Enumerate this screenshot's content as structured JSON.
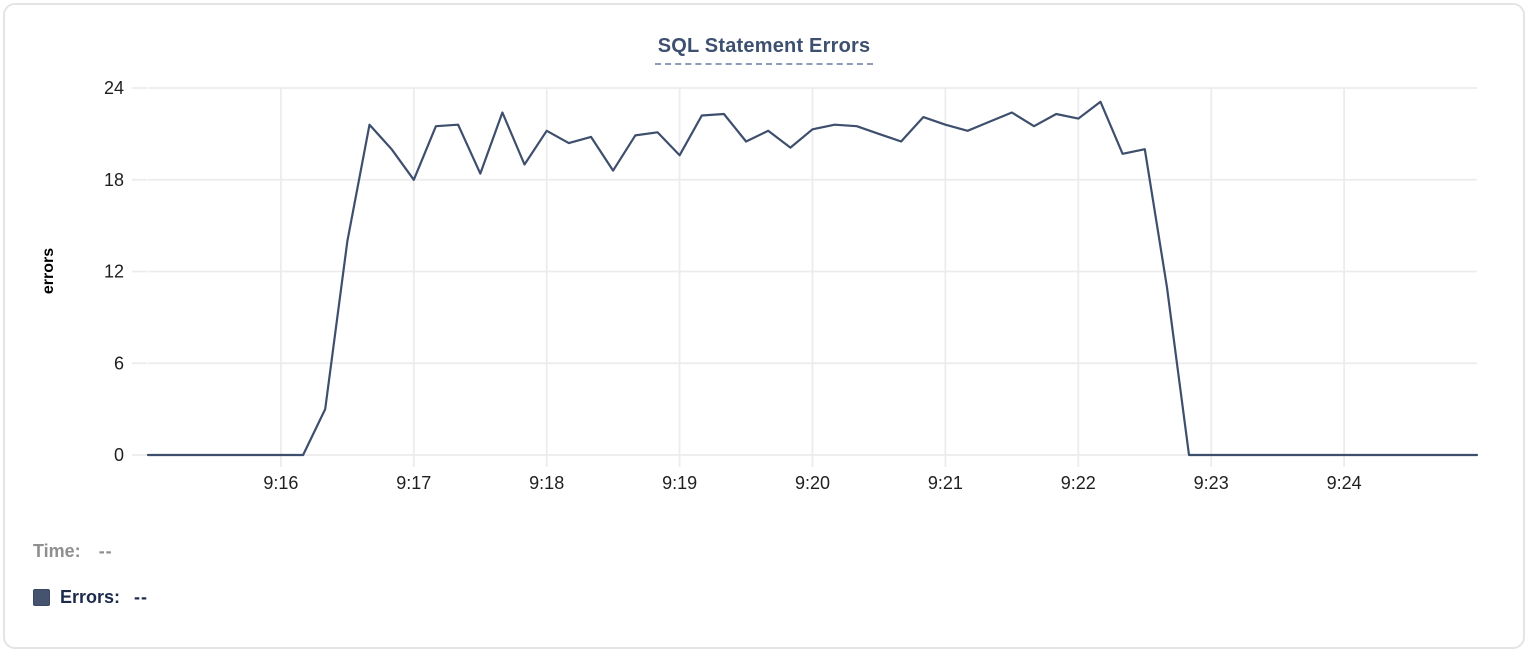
{
  "chart_data": {
    "type": "line",
    "title": "SQL Statement Errors",
    "ylabel": "errors",
    "xlabel": "",
    "x_start": "9:15:00",
    "x_end": "9:25:00",
    "sample_interval_seconds": 10,
    "x_tick_labels": [
      "9:16",
      "9:17",
      "9:18",
      "9:19",
      "9:20",
      "9:21",
      "9:22",
      "9:23",
      "9:24"
    ],
    "y_ticks": [
      0,
      6,
      12,
      18,
      24
    ],
    "ylim": [
      0,
      24
    ],
    "grid": true,
    "legend_position": "bottom-left",
    "series": [
      {
        "name": "Errors",
        "color": "#3e4f6d",
        "values": [
          0,
          0,
          0,
          0,
          0,
          0,
          0,
          0,
          3,
          14,
          21.6,
          20,
          18,
          21.5,
          21.6,
          18.4,
          22.4,
          19,
          21.2,
          20.4,
          20.8,
          18.6,
          20.9,
          21.1,
          19.6,
          22.2,
          22.3,
          20.5,
          21.2,
          20.1,
          21.3,
          21.6,
          21.5,
          21,
          20.5,
          22.1,
          21.6,
          21.2,
          21.8,
          22.4,
          21.5,
          22.3,
          22,
          23.1,
          19.7,
          20,
          11,
          0,
          0,
          0,
          0,
          0,
          0,
          0,
          0,
          0,
          0,
          0,
          0,
          0,
          0
        ]
      }
    ]
  },
  "tooltip": {
    "time_label": "Time:",
    "time_value": "--",
    "errors_label": "Errors:",
    "errors_value": "--"
  },
  "colors": {
    "line": "#3e4f6d",
    "grid": "#ececec",
    "tick_text": "#1f1f1f",
    "title": "#3d5070",
    "title_underline": "#8e9cba",
    "time_text": "#8f8f8f",
    "errors_text": "#1c2b4a",
    "swatch": "#46536e",
    "card_border": "#e4e4e4"
  }
}
